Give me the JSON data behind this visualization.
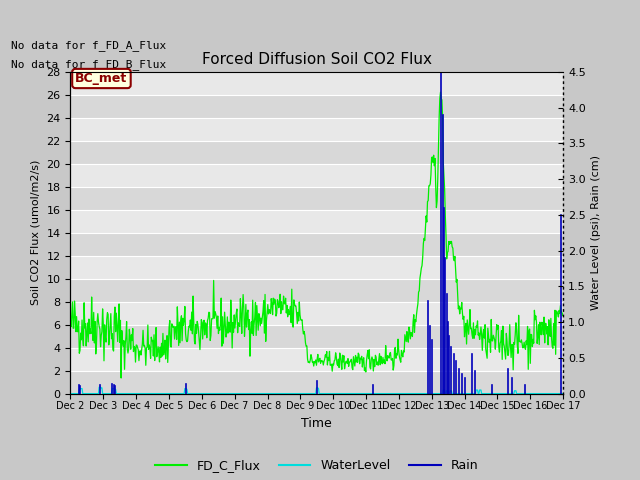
{
  "title": "Forced Diffusion Soil CO2 Flux",
  "xlabel": "Time",
  "ylabel_left": "Soil CO2 Flux (umol/m2/s)",
  "ylabel_right": "Water Level (psi), Rain (cm)",
  "no_data_text": [
    "No data for f_FD_A_Flux",
    "No data for f_FD_B_Flux"
  ],
  "bc_met_label": "BC_met",
  "ylim_left": [
    0,
    28
  ],
  "ylim_right": [
    0,
    4.5
  ],
  "yticks_left": [
    0,
    2,
    4,
    6,
    8,
    10,
    12,
    14,
    16,
    18,
    20,
    22,
    24,
    26,
    28
  ],
  "yticks_right": [
    0.0,
    0.5,
    1.0,
    1.5,
    2.0,
    2.5,
    3.0,
    3.5,
    4.0,
    4.5
  ],
  "xtick_labels": [
    "Dec 2",
    "Dec 3",
    "Dec 4",
    "Dec 5",
    "Dec 6",
    "Dec 7",
    "Dec 8",
    "Dec 9",
    "Dec 10",
    "Dec 11",
    "Dec 12",
    "Dec 13",
    "Dec 14",
    "Dec 15",
    "Dec 16",
    "Dec 17"
  ],
  "fig_bg_color": "#c8c8c8",
  "plot_bg_color": "#e8e8e8",
  "band_color_dark": "#d8d8d8",
  "band_color_light": "#e8e8e8",
  "flux_color": "#00ee00",
  "water_color": "#00dddd",
  "rain_color": "#0000bb",
  "legend_flux": "FD_C_Flux",
  "legend_water": "WaterLevel",
  "legend_rain": "Rain",
  "grid_color": "#ffffff"
}
